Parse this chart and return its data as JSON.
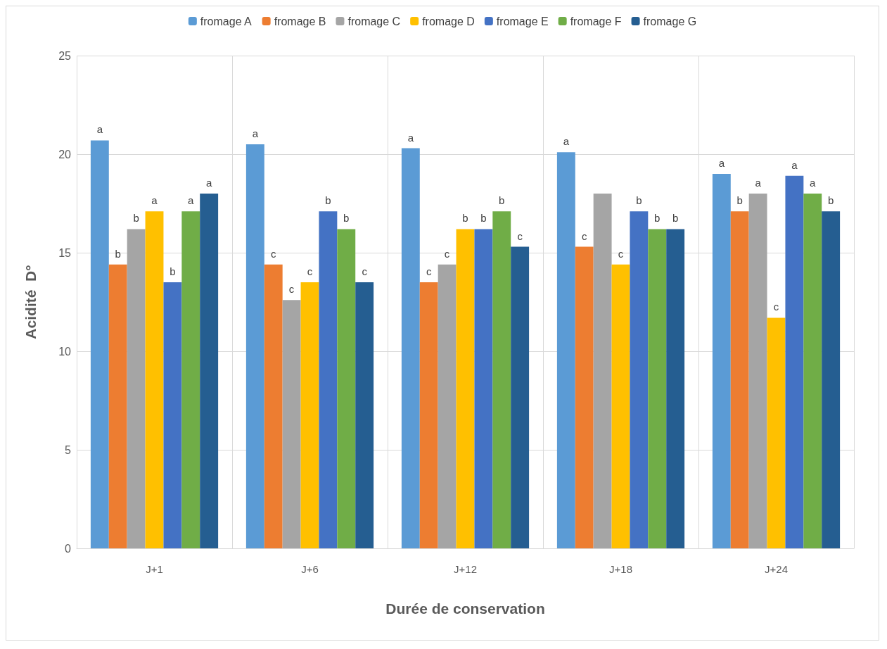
{
  "chart_data": {
    "type": "bar",
    "xlabel": "Durée de conservation",
    "ylabel": "Acidité  D°",
    "categories": [
      "J+1",
      "J+6",
      "J+12",
      "J+18",
      "J+24"
    ],
    "series": [
      {
        "name": "fromage A",
        "color": "#5b9bd5",
        "values": [
          20.7,
          20.5,
          20.3,
          20.1,
          19.0
        ],
        "value_labels": [
          "a",
          "a",
          "a",
          "a",
          "a"
        ]
      },
      {
        "name": "fromage B",
        "color": "#ed7d31",
        "values": [
          14.4,
          14.4,
          13.5,
          15.3,
          17.1
        ],
        "value_labels": [
          "b",
          "c",
          "c",
          "c",
          "b"
        ]
      },
      {
        "name": "fromage C",
        "color": "#a5a5a5",
        "values": [
          16.2,
          12.6,
          14.4,
          18.0,
          18.0
        ],
        "value_labels": [
          "b",
          "c",
          "c",
          null,
          "a"
        ]
      },
      {
        "name": "fromage D",
        "color": "#ffc000",
        "values": [
          17.1,
          13.5,
          16.2,
          14.4,
          11.7
        ],
        "value_labels": [
          "a",
          "c",
          "b",
          "c",
          "c"
        ]
      },
      {
        "name": "fromage E",
        "color": "#4472c4",
        "values": [
          13.5,
          17.1,
          16.2,
          17.1,
          18.9
        ],
        "value_labels": [
          "b",
          "b",
          "b",
          "b",
          "a"
        ]
      },
      {
        "name": "fromage F",
        "color": "#70ad47",
        "values": [
          17.1,
          16.2,
          17.1,
          16.2,
          18.0
        ],
        "value_labels": [
          "a",
          "b",
          "b",
          "b",
          "a"
        ]
      },
      {
        "name": "fromage G",
        "color": "#255e91",
        "values": [
          18.0,
          13.5,
          15.3,
          16.2,
          17.1
        ],
        "value_labels": [
          "a",
          "c",
          "c",
          "b",
          "b"
        ]
      }
    ],
    "ylim": [
      0,
      25
    ],
    "yticks": [
      0,
      5,
      10,
      15,
      20,
      25
    ],
    "grid": true,
    "legend": "top"
  }
}
